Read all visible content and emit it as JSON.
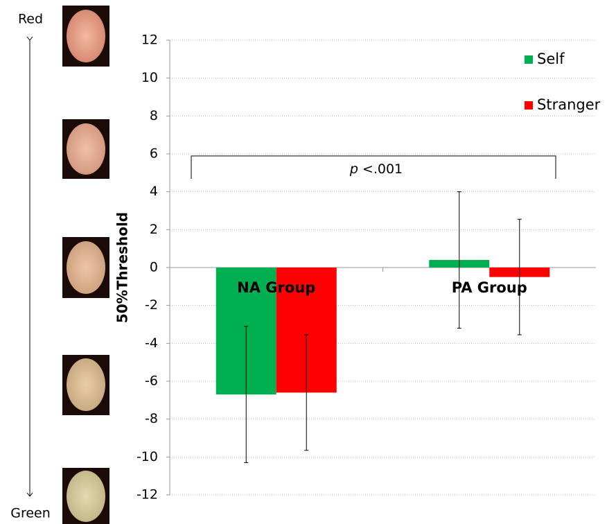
{
  "chart_data": {
    "type": "bar",
    "categories": [
      "NA Group",
      "PA Group"
    ],
    "series": [
      {
        "name": "Self",
        "color": "#00b050",
        "values": [
          -6.7,
          0.4
        ],
        "errors": [
          3.6,
          3.6
        ]
      },
      {
        "name": "Stranger",
        "color": "#ff0000",
        "values": [
          -6.6,
          -0.5
        ],
        "errors": [
          3.05,
          3.05
        ]
      }
    ],
    "ylabel": "50%Threshold",
    "ylim": [
      -12,
      12
    ],
    "yticks": [
      -12,
      -10,
      -8,
      -6,
      -4,
      -2,
      0,
      2,
      4,
      6,
      8,
      10,
      12
    ],
    "grid": true,
    "legend": "top-right",
    "annotation": {
      "italic": "p",
      "rest": "<.001"
    },
    "scale_labels": {
      "top": "Red",
      "bottom": "Green"
    }
  }
}
